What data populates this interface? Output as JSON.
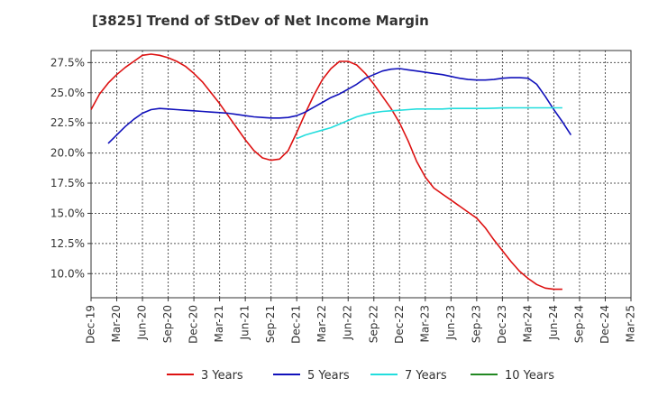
{
  "chart_data": {
    "type": "line",
    "title": "[3825]  Trend of StDev of Net Income Margin",
    "xlabel": "",
    "ylabel": "",
    "ylim": [
      8.0,
      28.5
    ],
    "yticks": [
      "10.0%",
      "12.5%",
      "15.0%",
      "17.5%",
      "20.0%",
      "22.5%",
      "25.0%",
      "27.5%"
    ],
    "ytick_values": [
      10.0,
      12.5,
      15.0,
      17.5,
      20.0,
      22.5,
      25.0,
      27.5
    ],
    "xticks": [
      "Dec-19",
      "Mar-20",
      "Jun-20",
      "Sep-20",
      "Dec-20",
      "Mar-21",
      "Jun-21",
      "Sep-21",
      "Dec-21",
      "Mar-22",
      "Jun-22",
      "Sep-22",
      "Dec-22",
      "Mar-23",
      "Jun-23",
      "Sep-23",
      "Dec-23",
      "Mar-24",
      "Jun-24",
      "Sep-24",
      "Dec-24",
      "Mar-25"
    ],
    "grid": true,
    "legend_position": "bottom",
    "series": [
      {
        "name": "3 Years",
        "color": "#dd1111",
        "start_index": 0,
        "values": [
          23.6,
          24.9,
          25.8,
          26.5,
          27.1,
          27.6,
          28.1,
          28.2,
          28.1,
          27.9,
          27.6,
          27.2,
          26.6,
          25.9,
          25.0,
          24.1,
          23.1,
          22.1,
          21.1,
          20.2,
          19.6,
          19.4,
          19.5,
          20.2,
          21.7,
          23.3,
          24.8,
          26.1,
          27.0,
          27.6,
          27.6,
          27.3,
          26.6,
          25.7,
          24.7,
          23.7,
          22.5,
          21.0,
          19.3,
          18.0,
          17.1,
          16.6,
          16.1,
          15.6,
          15.1,
          14.6,
          13.8,
          12.8,
          11.9,
          11.0,
          10.2,
          9.6,
          9.1,
          8.8,
          8.7,
          8.7
        ]
      },
      {
        "name": "5 Years",
        "color": "#1111bb",
        "start_index": 2,
        "values": [
          20.8,
          21.5,
          22.2,
          22.8,
          23.3,
          23.6,
          23.7,
          23.65,
          23.6,
          23.55,
          23.5,
          23.45,
          23.4,
          23.35,
          23.3,
          23.2,
          23.1,
          23.0,
          22.95,
          22.9,
          22.9,
          22.95,
          23.1,
          23.4,
          23.8,
          24.2,
          24.6,
          24.9,
          25.3,
          25.7,
          26.2,
          26.5,
          26.8,
          26.95,
          27.0,
          26.9,
          26.8,
          26.7,
          26.6,
          26.5,
          26.35,
          26.2,
          26.1,
          26.05,
          26.05,
          26.1,
          26.2,
          26.25,
          26.25,
          26.2,
          25.7,
          24.7,
          23.6,
          22.6,
          21.5
        ]
      },
      {
        "name": "7 Years",
        "color": "#22dddd",
        "start_index": 24,
        "values": [
          21.2,
          21.5,
          21.7,
          21.9,
          22.1,
          22.4,
          22.7,
          23.0,
          23.2,
          23.35,
          23.45,
          23.5,
          23.55,
          23.6,
          23.65,
          23.65,
          23.65,
          23.65,
          23.7,
          23.7,
          23.7,
          23.7,
          23.7,
          23.72,
          23.74,
          23.75,
          23.75,
          23.75,
          23.75,
          23.75,
          23.75,
          23.75
        ]
      },
      {
        "name": "10 Years",
        "color": "#228822",
        "start_index": 0,
        "values": []
      }
    ]
  }
}
